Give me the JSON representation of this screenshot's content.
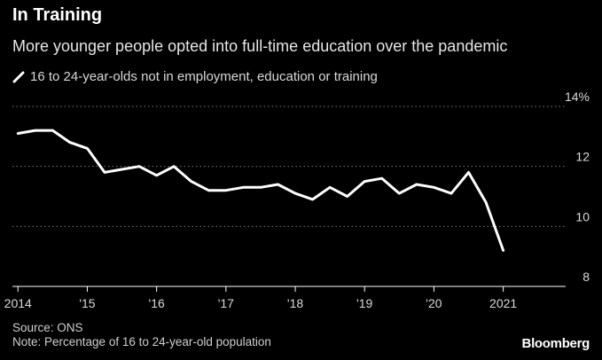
{
  "title": "In Training",
  "subtitle": "More younger people opted into full-time education over the pandemic",
  "source": "Source: ONS",
  "note": "Note: Percentage of 16 to 24-year-old population",
  "brand": "Bloomberg",
  "colors": {
    "background": "#000000",
    "line": "#ffffff",
    "grid": "#777777"
  },
  "chart_data": {
    "type": "line",
    "ylim": [
      8,
      14
    ],
    "xlim": [
      2013.92,
      2021.9
    ],
    "y_ticks": [
      {
        "value": 14,
        "label": "14%"
      },
      {
        "value": 12,
        "label": "12"
      },
      {
        "value": 10,
        "label": "10"
      },
      {
        "value": 8,
        "label": "8"
      }
    ],
    "x_ticks": [
      {
        "value": 2014,
        "label": "2014"
      },
      {
        "value": 2015,
        "label": "'15"
      },
      {
        "value": 2016,
        "label": "'16"
      },
      {
        "value": 2017,
        "label": "'17"
      },
      {
        "value": 2018,
        "label": "'18"
      },
      {
        "value": 2019,
        "label": "'19"
      },
      {
        "value": 2020,
        "label": "'20"
      },
      {
        "value": 2021,
        "label": "2021"
      }
    ],
    "grid": true,
    "series": [
      {
        "name": "16 to 24-year-olds not in employment, education or training",
        "x": [
          2014.0,
          2014.25,
          2014.5,
          2014.75,
          2015.0,
          2015.25,
          2015.5,
          2015.75,
          2016.0,
          2016.25,
          2016.5,
          2016.75,
          2017.0,
          2017.25,
          2017.5,
          2017.75,
          2018.0,
          2018.25,
          2018.5,
          2018.75,
          2019.0,
          2019.25,
          2019.5,
          2019.75,
          2020.0,
          2020.25,
          2020.5,
          2020.75,
          2021.0,
          2021.25,
          2021.5
        ],
        "values": [
          13.1,
          13.2,
          13.2,
          12.8,
          12.6,
          11.8,
          11.9,
          12.0,
          11.7,
          12.0,
          11.5,
          11.2,
          11.2,
          11.3,
          11.3,
          11.4,
          11.1,
          10.9,
          11.3,
          11.0,
          11.5,
          11.6,
          11.1,
          11.4,
          11.3,
          11.1,
          11.8,
          10.8,
          9.2,
          null,
          null
        ]
      }
    ]
  }
}
